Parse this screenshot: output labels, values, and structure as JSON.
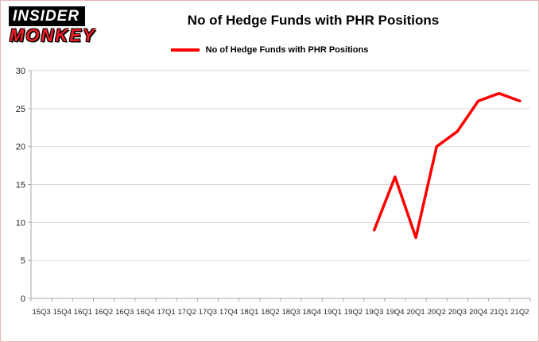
{
  "logo": {
    "line1": "INSIDER",
    "line2": "MONKEY"
  },
  "colors": {
    "line": "#fe0000",
    "grid": "#d9d9d9",
    "axis": "#a6a6a6",
    "tick_label": "#262626"
  },
  "chart_data": {
    "type": "line",
    "title": "No of Hedge Funds with PHR Positions",
    "xlabel": "",
    "ylabel": "",
    "categories": [
      "15Q3",
      "15Q4",
      "16Q1",
      "16Q2",
      "16Q3",
      "16Q4",
      "17Q1",
      "17Q2",
      "17Q3",
      "17Q4",
      "18Q1",
      "18Q2",
      "18Q3",
      "18Q4",
      "19Q1",
      "19Q2",
      "19Q3",
      "19Q4",
      "20Q1",
      "20Q2",
      "20Q3",
      "20Q4",
      "21Q1",
      "21Q2"
    ],
    "series": [
      {
        "name": "No of Hedge Funds with PHR Positions",
        "color": "#fe0000",
        "values": [
          null,
          null,
          null,
          null,
          null,
          null,
          null,
          null,
          null,
          null,
          null,
          null,
          null,
          null,
          null,
          null,
          9,
          16,
          8,
          20,
          22,
          26,
          27,
          26
        ]
      }
    ],
    "ylim": [
      0,
      30
    ],
    "yticks": [
      0,
      5,
      10,
      15,
      20,
      25,
      30
    ],
    "grid": true,
    "legend_position": "top"
  }
}
